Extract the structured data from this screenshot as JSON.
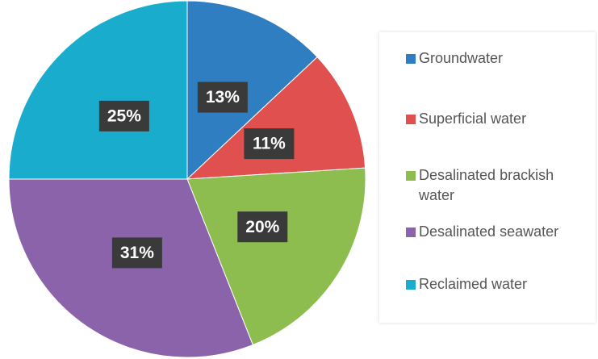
{
  "chart_data": {
    "type": "pie",
    "categories": [
      "Groundwater",
      "Superficial water",
      "Desalinated brackish water",
      "Desalinated seawater",
      "Reclaimed water"
    ],
    "values": [
      13,
      11,
      20,
      31,
      25
    ],
    "value_labels": [
      "13%",
      "11%",
      "20%",
      "31%",
      "25%"
    ],
    "colors": [
      "#2e7ec1",
      "#e0504f",
      "#8cbd4e",
      "#8a63aa",
      "#1aaccc"
    ],
    "legend": "right"
  }
}
